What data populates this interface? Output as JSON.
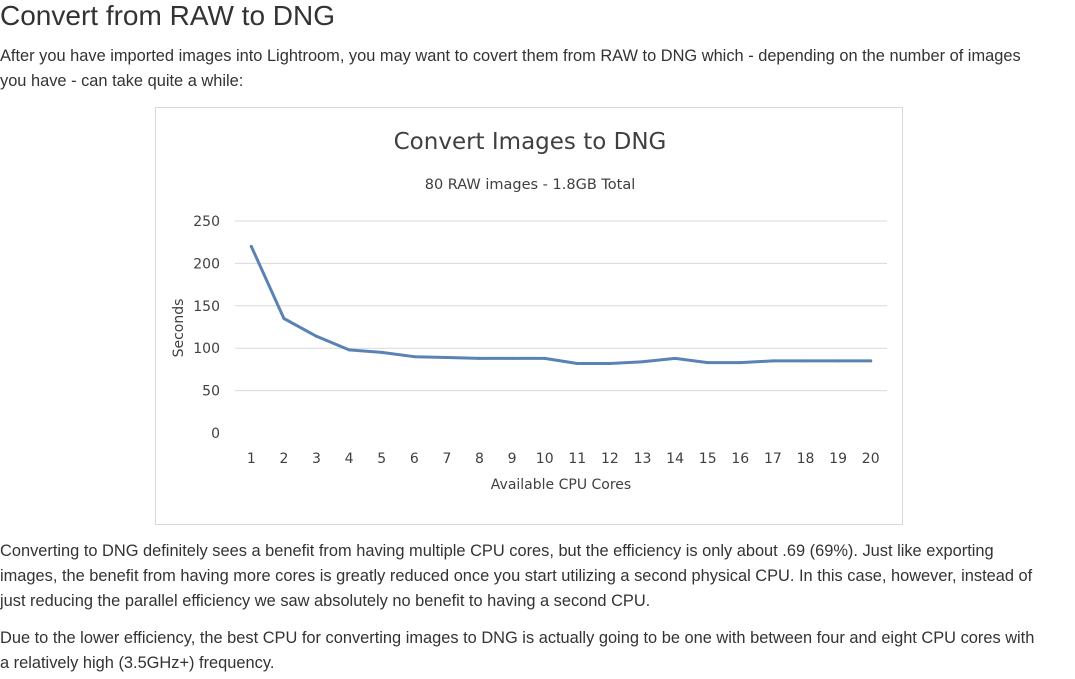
{
  "article": {
    "heading": "Convert from RAW to DNG",
    "intro": "After you have imported images into Lightroom, you may want to covert them from RAW to DNG which - depending on the number of images you have - can take quite a while:",
    "paragraph_2": "Converting to DNG definitely sees a benefit from having multiple CPU cores, but the efficiency is only about .69 (69%). Just like exporting images, the benefit from having more cores is greatly reduced once you start utilizing a second physical CPU. In this case, however, instead of just reducing the parallel efficiency we saw absolutely no benefit to having a second CPU.",
    "paragraph_3": "Due to the lower efficiency, the best CPU for converting images to DNG is actually going to be one with between four and eight CPU cores with a relatively high (3.5GHz+) frequency."
  },
  "chart_data": {
    "type": "line",
    "title": "Convert Images to DNG",
    "subtitle": "80 RAW images - 1.8GB Total",
    "xlabel": "Available CPU Cores",
    "ylabel": "Seconds",
    "categories": [
      "1",
      "2",
      "3",
      "4",
      "5",
      "6",
      "7",
      "8",
      "9",
      "10",
      "11",
      "12",
      "13",
      "14",
      "15",
      "16",
      "17",
      "18",
      "19",
      "20"
    ],
    "yticks": [
      "0",
      "50",
      "100",
      "150",
      "200",
      "250"
    ],
    "ylim": [
      0,
      250
    ],
    "grid": true,
    "legend": "none",
    "series": [
      {
        "values": [
          220,
          135,
          114,
          98,
          95,
          90,
          89,
          88,
          88,
          88,
          82,
          82,
          84,
          88,
          83,
          83,
          85,
          85,
          85,
          85
        ],
        "color": "#5b82b4"
      }
    ],
    "colors": {
      "grid": "#d9d9d9",
      "text": "#404040"
    }
  }
}
